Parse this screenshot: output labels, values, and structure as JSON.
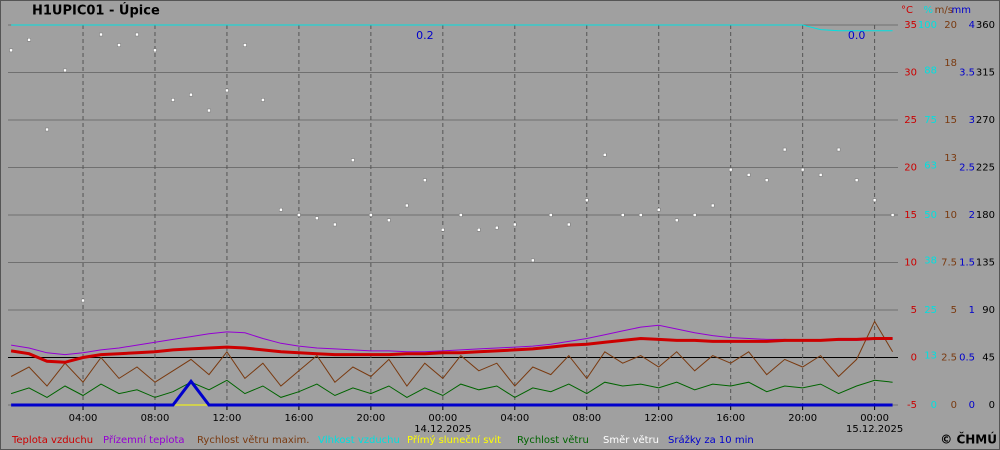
{
  "chart_data": {
    "type": "line",
    "title": "H1UPIC01 - Úpice",
    "copyright": "© ČHMÚ",
    "grid": true,
    "x": [
      0,
      1,
      2,
      3,
      4,
      5,
      6,
      7,
      8,
      9,
      10,
      11,
      12,
      13,
      14,
      15,
      16,
      17,
      18,
      19,
      20,
      21,
      22,
      23,
      24,
      25,
      26,
      27,
      28,
      29,
      30,
      31,
      32,
      33,
      34,
      35,
      36,
      37,
      38,
      39,
      40,
      41,
      42,
      43,
      44,
      45,
      46,
      47,
      48,
      49
    ],
    "xlim": [
      -0.17,
      49.3
    ],
    "xticks": [
      {
        "value": 4,
        "label": "04:00"
      },
      {
        "value": 8,
        "label": "08:00"
      },
      {
        "value": 12,
        "label": "12:00"
      },
      {
        "value": 16,
        "label": "16:00"
      },
      {
        "value": 20,
        "label": "20:00"
      },
      {
        "value": 24,
        "label": "00:00"
      },
      {
        "value": 28,
        "label": "04:00"
      },
      {
        "value": 32,
        "label": "08:00"
      },
      {
        "value": 36,
        "label": "12:00"
      },
      {
        "value": 40,
        "label": "16:00"
      },
      {
        "value": 44,
        "label": "20:00"
      },
      {
        "value": 48,
        "label": "00:00"
      }
    ],
    "date_labels": [
      {
        "value": 24,
        "label": "14.12.2025"
      },
      {
        "value": 48,
        "label": "15.12.2025"
      }
    ],
    "annotations": [
      {
        "x": 23,
        "text": "0.2"
      },
      {
        "x": 47,
        "text": "0.0"
      }
    ],
    "y_axes": [
      {
        "label": "°C",
        "color": "#cc0000",
        "ylim": [
          -5,
          35
        ],
        "yticks": [
          -5,
          0,
          5,
          10,
          15,
          20,
          25,
          30,
          35
        ]
      },
      {
        "label": "%",
        "color": "#00e0e0",
        "ylim": [
          0,
          100
        ],
        "yticks": [
          0,
          13,
          25,
          38,
          50,
          63,
          75,
          88,
          100
        ]
      },
      {
        "label": "m/s",
        "color": "#7a3a10",
        "ylim": [
          0,
          20
        ],
        "yticks": [
          0,
          2.5,
          5,
          7.5,
          10,
          13,
          15,
          18,
          20
        ]
      },
      {
        "label": "mm",
        "color": "#0000cc",
        "ylim": [
          0,
          4
        ],
        "yticks": [
          0,
          0.5,
          1,
          1.5,
          2,
          2.5,
          3,
          3.5,
          4
        ]
      },
      {
        "color": "#000000",
        "ylim": [
          0,
          360
        ],
        "yticks": [
          0,
          45,
          90,
          135,
          180,
          225,
          270,
          315,
          360
        ]
      }
    ],
    "series": [
      {
        "name": "Přímý sluneční svit",
        "color": "#ffff00",
        "axis": 1,
        "style": "line",
        "values": [
          0,
          0,
          0,
          0,
          0,
          0,
          0,
          0,
          0,
          0,
          0,
          0,
          0,
          0,
          0,
          0,
          0,
          0,
          0,
          0,
          0,
          0,
          0,
          0,
          0,
          0,
          0,
          0,
          0,
          0,
          0,
          0,
          0,
          0,
          0,
          0,
          0,
          0,
          0,
          0,
          0,
          0,
          0,
          0,
          0,
          0,
          0,
          0,
          0,
          0
        ]
      },
      {
        "name": "Vlhkost vzduchu",
        "color": "#00e0e0",
        "axis": 1,
        "style": "line",
        "values": [
          100,
          100,
          100,
          100,
          100,
          100,
          100,
          100,
          100,
          100,
          100,
          100,
          100,
          100,
          100,
          100,
          100,
          100,
          100,
          100,
          100,
          100,
          100,
          100,
          100,
          100,
          100,
          100,
          100,
          100,
          100,
          100,
          100,
          100,
          100,
          100,
          100,
          100,
          100,
          100,
          100,
          100,
          100,
          100,
          100,
          98.8,
          98.5,
          98.5,
          98.5,
          98.5
        ]
      },
      {
        "name": "Směr větru",
        "color": "#ffffff",
        "axis": 4,
        "style": "dots",
        "values": [
          336,
          346,
          261,
          317,
          99,
          351,
          341,
          351,
          336,
          289,
          294,
          279,
          298,
          341,
          289,
          185,
          180,
          177,
          171,
          232,
          180,
          175,
          189,
          213,
          166,
          180,
          166,
          168,
          171,
          137,
          180,
          171,
          194,
          237,
          180,
          180,
          185,
          175,
          180,
          189,
          223,
          218,
          213,
          242,
          223,
          218,
          242,
          213,
          194,
          180
        ]
      },
      {
        "name": "Rychlost větru maxim.",
        "color": "#7a3a10",
        "axis": 2,
        "style": "line",
        "values": [
          1.5,
          2.0,
          1.0,
          2.2,
          1.2,
          2.5,
          1.4,
          2.0,
          1.2,
          1.8,
          2.4,
          1.6,
          2.8,
          1.4,
          2.2,
          1.0,
          1.8,
          2.6,
          1.2,
          2.0,
          1.5,
          2.4,
          1.0,
          2.2,
          1.4,
          2.6,
          1.8,
          2.2,
          1.0,
          2.0,
          1.6,
          2.6,
          1.4,
          2.8,
          2.2,
          2.6,
          2.0,
          2.8,
          1.8,
          2.6,
          2.2,
          2.8,
          1.6,
          2.4,
          2.0,
          2.6,
          1.5,
          2.4,
          4.4,
          2.8
        ]
      },
      {
        "name": "Rychlost větru",
        "color": "#006400",
        "axis": 2,
        "style": "line",
        "values": [
          0.6,
          0.9,
          0.4,
          1.0,
          0.5,
          1.1,
          0.6,
          0.8,
          0.4,
          0.7,
          1.2,
          0.8,
          1.3,
          0.6,
          1.0,
          0.4,
          0.7,
          1.1,
          0.5,
          0.9,
          0.6,
          1.0,
          0.4,
          0.9,
          0.5,
          1.1,
          0.8,
          1.0,
          0.4,
          0.9,
          0.7,
          1.1,
          0.6,
          1.2,
          1.0,
          1.1,
          0.9,
          1.2,
          0.8,
          1.1,
          1.0,
          1.2,
          0.7,
          1.0,
          0.9,
          1.1,
          0.6,
          1.0,
          1.3,
          1.2
        ]
      },
      {
        "name": "Přízemní teplota",
        "color": "#9400d3",
        "axis": 0,
        "style": "line",
        "values": [
          1.3,
          1.0,
          0.5,
          0.3,
          0.5,
          0.8,
          1.0,
          1.3,
          1.6,
          1.9,
          2.2,
          2.5,
          2.7,
          2.6,
          2.0,
          1.5,
          1.2,
          1.0,
          0.9,
          0.8,
          0.7,
          0.7,
          0.6,
          0.6,
          0.7,
          0.8,
          0.9,
          1.0,
          1.1,
          1.2,
          1.4,
          1.7,
          2.0,
          2.4,
          2.8,
          3.2,
          3.4,
          3.0,
          2.6,
          2.3,
          2.1,
          2.0,
          1.9,
          1.9,
          1.8,
          1.8,
          1.8,
          1.8,
          1.9,
          2.0
        ]
      },
      {
        "name": "Teplota vzduchu",
        "color": "#cc0000",
        "axis": 0,
        "style": "thick-line",
        "values": [
          0.7,
          0.4,
          -0.4,
          -0.5,
          0.0,
          0.3,
          0.4,
          0.5,
          0.6,
          0.8,
          0.9,
          1.0,
          1.1,
          1.0,
          0.8,
          0.6,
          0.5,
          0.4,
          0.3,
          0.3,
          0.3,
          0.3,
          0.4,
          0.4,
          0.5,
          0.5,
          0.6,
          0.7,
          0.8,
          0.9,
          1.1,
          1.3,
          1.4,
          1.6,
          1.8,
          2.0,
          1.9,
          1.8,
          1.8,
          1.7,
          1.7,
          1.7,
          1.7,
          1.8,
          1.8,
          1.8,
          1.9,
          1.9,
          2.0,
          2.0
        ]
      },
      {
        "name": "Srážky za 10 min",
        "color": "#0000cc",
        "axis": 3,
        "style": "thick-line",
        "values": [
          0,
          0,
          0,
          0,
          0,
          0,
          0,
          0,
          0,
          0,
          0.25,
          0,
          0,
          0,
          0,
          0,
          0,
          0,
          0,
          0,
          0,
          0,
          0,
          0,
          0,
          0,
          0,
          0,
          0,
          0,
          0,
          0,
          0,
          0,
          0,
          0,
          0,
          0,
          0,
          0,
          0,
          0,
          0,
          0,
          0,
          0,
          0,
          0,
          0,
          0
        ]
      }
    ],
    "legend_order": [
      6,
      5,
      3,
      1,
      0,
      4,
      2,
      7
    ]
  }
}
